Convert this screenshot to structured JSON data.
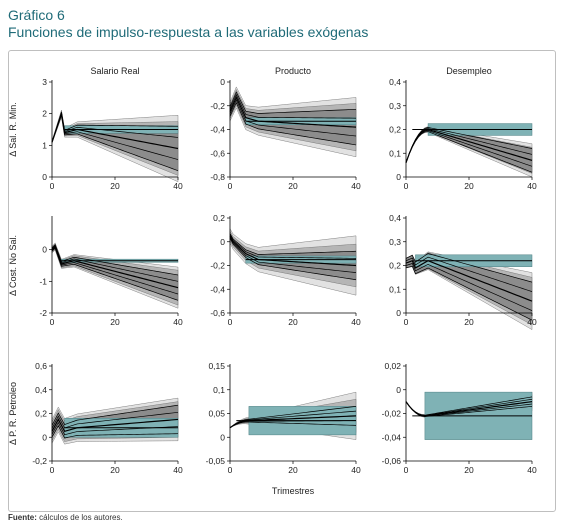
{
  "header": {
    "label": "Gráfico 6",
    "title": "Funciones de impulso-respuesta a las variables exógenas"
  },
  "footer": {
    "source_label": "Fuente:",
    "source_text": "cálculos de los autores."
  },
  "colors": {
    "teal_band": "#7fb2b5",
    "dark_band": "#8c8c8c",
    "mid_band": "#b5b5b5",
    "light_band": "#e2e2e2",
    "line": "#000000",
    "title": "#1f6b78"
  },
  "grid": {
    "column_titles": [
      "Salario Real",
      "Producto",
      "Desempleo"
    ],
    "row_titles": [
      "Δ Sal. R. Min.",
      "Δ Cost. No Sal.",
      "Δ P. R. Petroleo"
    ],
    "x_axis_title": "Trimestres"
  },
  "chart_data": [
    {
      "type": "area",
      "row": 0,
      "col": 0,
      "row_title": "Δ Sal. R. Min.",
      "col_title": "Salario Real",
      "x_ticks": [
        "0",
        "20",
        "40"
      ],
      "xlim": [
        0,
        40
      ],
      "y_ticks": [
        "0",
        "1",
        "2",
        "3"
      ],
      "ylim": [
        0,
        3
      ],
      "shape": "peak",
      "start": 1.1,
      "peak_x": 3,
      "peak": 2.0,
      "dip_x": 4,
      "dip": 1.4,
      "settle": 1.5,
      "end": 0.9,
      "teal": [
        0.12,
        0.12
      ],
      "dark": [
        0.0,
        0.7
      ],
      "mid": [
        0.02,
        0.85
      ],
      "light": [
        0.04,
        1.05
      ]
    },
    {
      "type": "area",
      "row": 0,
      "col": 1,
      "row_title": "Δ Sal. R. Min.",
      "col_title": "Producto",
      "x_ticks": [
        "0",
        "20",
        "40"
      ],
      "xlim": [
        0,
        40
      ],
      "y_ticks": [
        "0",
        "-0,2",
        "-0,4",
        "-0,6",
        "-0,8"
      ],
      "ylim": [
        -0.8,
        0
      ],
      "shape": "peak",
      "start": -0.25,
      "peak_x": 2,
      "peak": -0.13,
      "dip_x": 5,
      "dip": -0.3,
      "settle": -0.33,
      "end": -0.38,
      "teal": [
        0.03,
        0.03
      ],
      "dark": [
        0.04,
        0.15
      ],
      "mid": [
        0.06,
        0.2
      ],
      "light": [
        0.08,
        0.25
      ]
    },
    {
      "type": "area",
      "row": 0,
      "col": 2,
      "row_title": "Δ Sal. R. Min.",
      "col_title": "Desempleo",
      "x_ticks": [
        "0",
        "20",
        "40"
      ],
      "xlim": [
        0,
        40
      ],
      "y_ticks": [
        "0",
        "0,1",
        "0,2",
        "0,3",
        "0,4"
      ],
      "ylim": [
        0,
        0.4
      ],
      "shape": "rise",
      "start": 0.06,
      "peak_x": 7,
      "peak": 0.2,
      "settle": 0.2,
      "end": 0.07,
      "teal": [
        0.025,
        0.025
      ],
      "dark": [
        0.0,
        0.05
      ],
      "mid": [
        0.0,
        0.055
      ],
      "light": [
        0.0,
        0.07
      ]
    },
    {
      "type": "area",
      "row": 1,
      "col": 0,
      "row_title": "Δ Cost. No Sal.",
      "col_title": "Salario Real",
      "x_ticks": [
        "0",
        "20",
        "40"
      ],
      "xlim": [
        0,
        40
      ],
      "y_ticks": [
        "0",
        "-1",
        "-2"
      ],
      "ylim": [
        -2,
        1
      ],
      "shape": "peak",
      "start": 0.0,
      "peak_x": 1,
      "peak": 0.1,
      "dip_x": 3,
      "dip": -0.45,
      "settle": -0.35,
      "end": -1.2,
      "teal": [
        0.05,
        0.05
      ],
      "dark": [
        0.05,
        0.4
      ],
      "mid": [
        0.08,
        0.55
      ],
      "light": [
        0.1,
        0.65
      ]
    },
    {
      "type": "area",
      "row": 1,
      "col": 1,
      "row_title": "Δ Cost. No Sal.",
      "col_title": "Producto",
      "x_ticks": [
        "0",
        "20",
        "40"
      ],
      "xlim": [
        0,
        40
      ],
      "y_ticks": [
        "0,2",
        "0",
        "-0,2",
        "-0,4",
        "-0,6"
      ],
      "ylim": [
        -0.6,
        0.2
      ],
      "shape": "peak",
      "start": 0.05,
      "peak_x": 1,
      "peak": 0.0,
      "dip_x": 5,
      "dip": -0.1,
      "settle": -0.15,
      "end": -0.2,
      "teal": [
        0.03,
        0.03
      ],
      "dark": [
        0.02,
        0.12
      ],
      "mid": [
        0.04,
        0.18
      ],
      "light": [
        0.06,
        0.25
      ]
    },
    {
      "type": "area",
      "row": 1,
      "col": 2,
      "row_title": "Δ Cost. No Sal.",
      "col_title": "Desempleo",
      "x_ticks": [
        "0",
        "20",
        "40"
      ],
      "xlim": [
        0,
        40
      ],
      "y_ticks": [
        "0",
        "0,1",
        "0,2",
        "0,3",
        "0,4"
      ],
      "ylim": [
        0,
        0.4
      ],
      "shape": "peak",
      "start": 0.21,
      "peak_x": 2,
      "peak": 0.22,
      "dip_x": 3,
      "dip": 0.19,
      "settle": 0.22,
      "end": 0.05,
      "teal": [
        0.025,
        0.025
      ],
      "dark": [
        0.02,
        0.08
      ],
      "mid": [
        0.02,
        0.1
      ],
      "light": [
        0.02,
        0.12
      ]
    },
    {
      "type": "area",
      "row": 2,
      "col": 0,
      "row_title": "Δ P. R. Petroleo",
      "col_title": "Salario Real",
      "x_ticks": [
        "0",
        "20",
        "40"
      ],
      "xlim": [
        0,
        40
      ],
      "y_ticks": [
        "0,6",
        "0,4",
        "0,2",
        "0",
        "-0,2"
      ],
      "ylim": [
        -0.2,
        0.6
      ],
      "shape": "peak",
      "start": 0.05,
      "peak_x": 2,
      "peak": 0.15,
      "dip_x": 4,
      "dip": 0.05,
      "settle": 0.08,
      "end": 0.15,
      "teal": [
        0.08,
        0.08
      ],
      "dark": [
        0.05,
        0.12
      ],
      "mid": [
        0.08,
        0.15
      ],
      "light": [
        0.1,
        0.18
      ]
    },
    {
      "type": "area",
      "row": 2,
      "col": 1,
      "row_title": "Δ P. R. Petroleo",
      "col_title": "Producto",
      "x_ticks": [
        "0",
        "20",
        "40"
      ],
      "xlim": [
        0,
        40
      ],
      "y_ticks": [
        "0,15",
        "0,1",
        "0,05",
        "0",
        "-0,05"
      ],
      "ylim": [
        -0.05,
        0.15
      ],
      "shape": "rise",
      "start": 0.02,
      "peak_x": 6,
      "peak": 0.035,
      "settle": 0.035,
      "end": 0.045,
      "teal": [
        0.03,
        0.03
      ],
      "dark": [
        0.0,
        0.02
      ],
      "mid": [
        0.0,
        0.035
      ],
      "light": [
        0.0,
        0.05
      ]
    },
    {
      "type": "area",
      "row": 2,
      "col": 2,
      "row_title": "Δ P. R. Petroleo",
      "col_title": "Desempleo",
      "x_ticks": [
        "0",
        "20",
        "40"
      ],
      "xlim": [
        0,
        40
      ],
      "y_ticks": [
        "0,02",
        "0",
        "-0,02",
        "-0,04",
        "-0,06"
      ],
      "ylim": [
        -0.06,
        0.02
      ],
      "shape": "dip",
      "start": -0.01,
      "peak_x": 6,
      "peak": -0.022,
      "settle": -0.022,
      "end": -0.01,
      "teal": [
        0.02,
        0.02
      ],
      "dark": [
        0.0,
        0.004
      ],
      "mid": [
        0.0,
        0.006
      ],
      "light": [
        0.0,
        0.008
      ]
    }
  ]
}
